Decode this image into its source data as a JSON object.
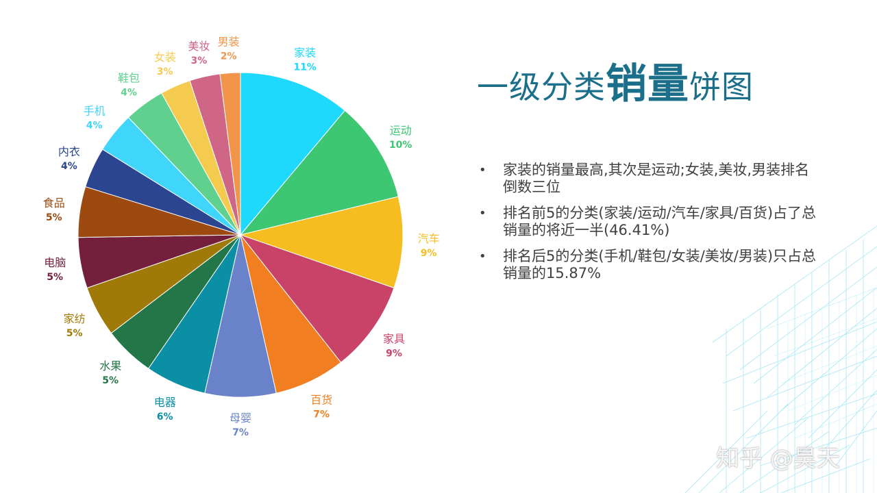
{
  "title": {
    "part1": "一级分类",
    "part2": "销量",
    "part3": "饼图"
  },
  "bullets": [
    "家装的销量最高,其次是运动;女装,美妆,男装排名倒数三位",
    "排名前5的分类(家装/运动/汽车/家具/百货)占了总销量的将近一半(46.41%)",
    "排名后5的分类(手机/鞋包/女装/美妆/男装)只占总销量的15.87%"
  ],
  "watermark": "知乎 @昊天",
  "chart_data": {
    "type": "pie",
    "start_angle": "12 o'clock",
    "direction": "clockwise",
    "slices": [
      {
        "name": "家装",
        "value": 11,
        "label": "11%",
        "color": "#1fd9fd"
      },
      {
        "name": "运动",
        "value": 10,
        "label": "10%",
        "color": "#3ec773"
      },
      {
        "name": "汽车",
        "value": 9,
        "label": "9%",
        "color": "#f5bd1f"
      },
      {
        "name": "家具",
        "value": 9,
        "label": "9%",
        "color": "#c94369"
      },
      {
        "name": "百货",
        "value": 7,
        "label": "7%",
        "color": "#f17f22"
      },
      {
        "name": "母婴",
        "value": 7,
        "label": "7%",
        "color": "#6a82c9"
      },
      {
        "name": "电器",
        "value": 6,
        "label": "6%",
        "color": "#0b8fa5"
      },
      {
        "name": "水果",
        "value": 5,
        "label": "5%",
        "color": "#237647"
      },
      {
        "name": "家纺",
        "value": 5,
        "label": "5%",
        "color": "#a07a08"
      },
      {
        "name": "电脑",
        "value": 5,
        "label": "5%",
        "color": "#74203d"
      },
      {
        "name": "食品",
        "value": 5,
        "label": "5%",
        "color": "#9c4a0f"
      },
      {
        "name": "内衣",
        "value": 4,
        "label": "4%",
        "color": "#2c4590"
      },
      {
        "name": "手机",
        "value": 4,
        "label": "4%",
        "color": "#40d5fb"
      },
      {
        "name": "鞋包",
        "value": 4,
        "label": "4%",
        "color": "#5fd08d"
      },
      {
        "name": "女装",
        "value": 3,
        "label": "3%",
        "color": "#f5cb4f"
      },
      {
        "name": "美妆",
        "value": 3,
        "label": "3%",
        "color": "#d06686"
      },
      {
        "name": "男装",
        "value": 2,
        "label": "2%",
        "color": "#f1954a"
      }
    ]
  }
}
